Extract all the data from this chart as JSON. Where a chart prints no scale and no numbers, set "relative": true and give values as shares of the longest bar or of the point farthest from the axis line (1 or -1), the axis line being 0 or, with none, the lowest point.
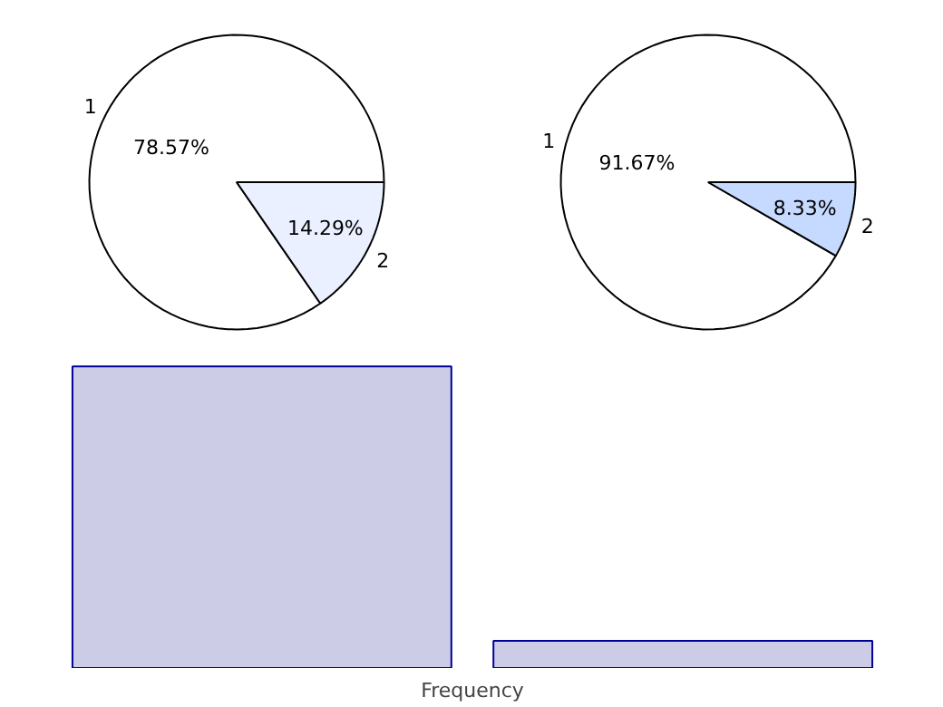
{
  "chart_data": [
    {
      "type": "pie",
      "categories": [
        "1",
        "2"
      ],
      "values": [
        78.57,
        14.29
      ],
      "value_labels": [
        "78.57%",
        "14.29%"
      ],
      "colors": [
        "#ffffff",
        "#eaf0ff"
      ]
    },
    {
      "type": "pie",
      "categories": [
        "1",
        "2"
      ],
      "values": [
        91.67,
        8.33
      ],
      "value_labels": [
        "91.67%",
        "8.33%"
      ],
      "colors": [
        "#ffffff",
        "#c6d9ff"
      ]
    },
    {
      "type": "bar",
      "categories": [
        null,
        null
      ],
      "values": [
        1,
        0.09
      ],
      "relative": true,
      "color": "#ccccE6",
      "xlabel": "Frequency"
    }
  ]
}
